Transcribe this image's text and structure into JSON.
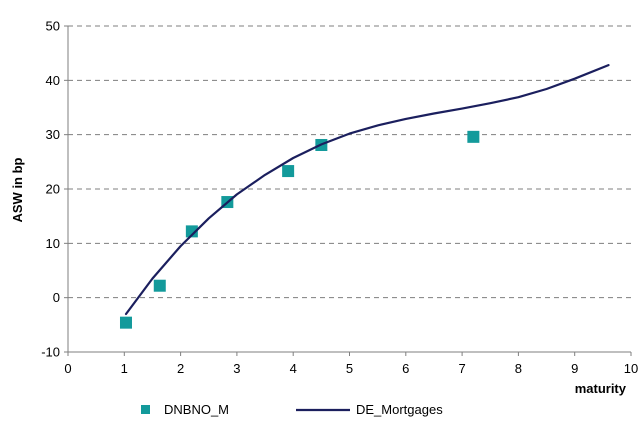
{
  "chart_data": {
    "type": "scatter",
    "xlabel": "maturity",
    "ylabel": "ASW in bp",
    "xlim": [
      0,
      10
    ],
    "ylim": [
      -10,
      50
    ],
    "xticks": [
      "0",
      "1",
      "2",
      "3",
      "4",
      "5",
      "6",
      "7",
      "8",
      "9",
      "10"
    ],
    "yticks": [
      "-10",
      "0",
      "10",
      "20",
      "30",
      "40",
      "50"
    ],
    "grid": "horizontal dashed",
    "legend": "bottom",
    "series": [
      {
        "name": "DNBNO_M",
        "type": "scatter",
        "color": "#139A9B",
        "marker": "square",
        "points": [
          {
            "x": 1.03,
            "y": -4.6
          },
          {
            "x": 1.63,
            "y": 2.2
          },
          {
            "x": 2.2,
            "y": 12.2
          },
          {
            "x": 2.83,
            "y": 17.6
          },
          {
            "x": 3.91,
            "y": 23.3
          },
          {
            "x": 4.5,
            "y": 28.1
          },
          {
            "x": 7.2,
            "y": 29.6
          }
        ]
      },
      {
        "name": "DE_Mortgages",
        "type": "line",
        "color": "#1B1F5E",
        "points": [
          {
            "x": 1.03,
            "y": -3.0
          },
          {
            "x": 1.5,
            "y": 3.5
          },
          {
            "x": 2.0,
            "y": 9.5
          },
          {
            "x": 2.5,
            "y": 14.6
          },
          {
            "x": 3.0,
            "y": 19.0
          },
          {
            "x": 3.5,
            "y": 22.6
          },
          {
            "x": 4.0,
            "y": 25.7
          },
          {
            "x": 4.5,
            "y": 28.2
          },
          {
            "x": 5.0,
            "y": 30.2
          },
          {
            "x": 5.5,
            "y": 31.7
          },
          {
            "x": 6.0,
            "y": 32.9
          },
          {
            "x": 6.5,
            "y": 33.9
          },
          {
            "x": 7.0,
            "y": 34.8
          },
          {
            "x": 7.5,
            "y": 35.8
          },
          {
            "x": 8.0,
            "y": 36.9
          },
          {
            "x": 8.5,
            "y": 38.4
          },
          {
            "x": 9.0,
            "y": 40.3
          },
          {
            "x": 9.6,
            "y": 42.8
          }
        ]
      }
    ]
  }
}
